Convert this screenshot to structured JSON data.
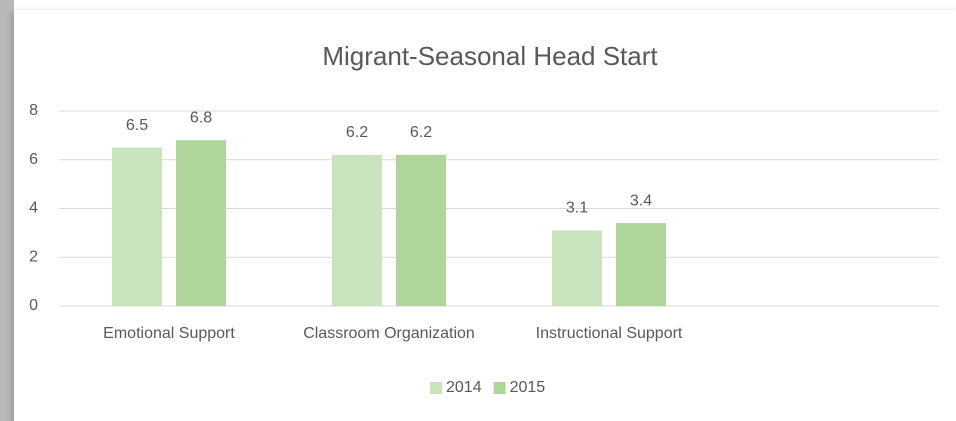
{
  "chart_data": {
    "type": "bar",
    "title": "Migrant-Seasonal Head Start",
    "categories": [
      "Emotional Support",
      "Classroom Organization",
      "Instructional Support",
      null
    ],
    "series": [
      {
        "name": "2014",
        "color": "#c9e4bd",
        "values": [
          6.5,
          6.2,
          3.1,
          null
        ]
      },
      {
        "name": "2015",
        "color": "#afd59a",
        "values": [
          6.8,
          6.2,
          3.4,
          null
        ]
      }
    ],
    "ylim": [
      0,
      8
    ],
    "yticks": [
      0,
      2,
      4,
      6,
      8
    ],
    "grid": true,
    "legend": "bottom"
  }
}
